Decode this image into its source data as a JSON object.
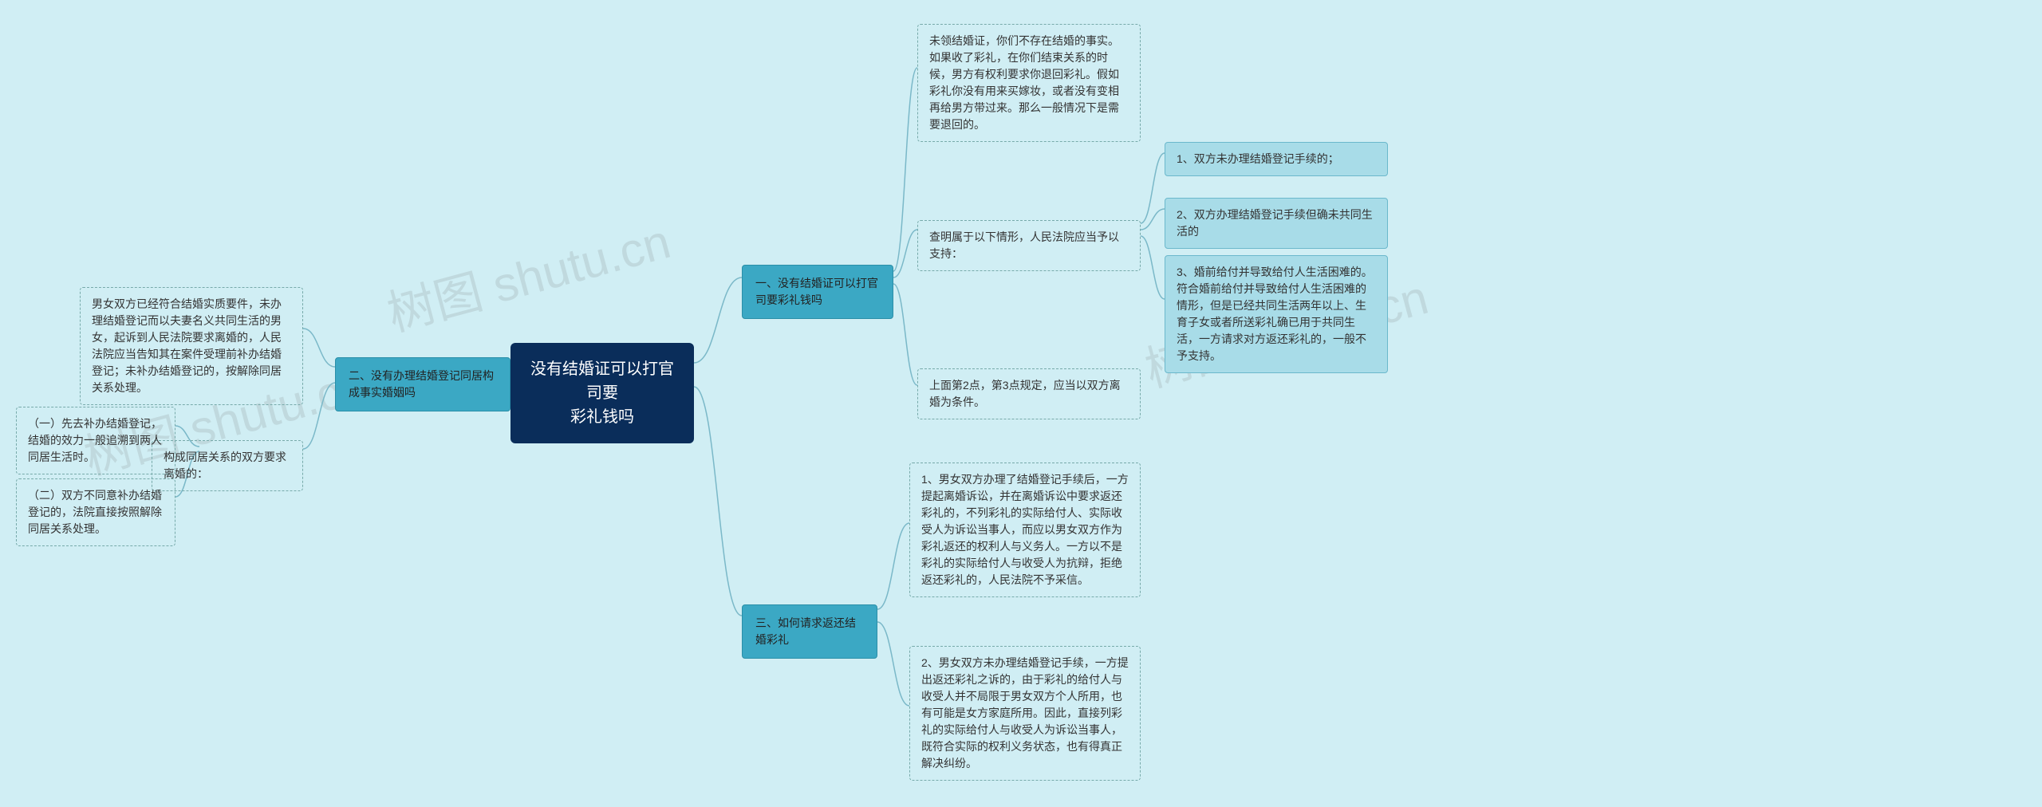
{
  "background_color": "#d0eef4",
  "watermark_text": "树图 shutu.cn",
  "root": {
    "text_line1": "没有结婚证可以打官司要",
    "text_line2": "彩礼钱吗",
    "bg": "#0a2d5a",
    "color": "#ffffff",
    "fontsize": 20
  },
  "branch_style": {
    "bg": "#3ba8c4",
    "border": "#2a8fa8",
    "fontsize": 14
  },
  "leaf_solid_style": {
    "bg": "#a8dce8",
    "border": "#6bb8cc",
    "fontsize": 14
  },
  "leaf_dashed_style": {
    "border": "#77aaaa",
    "fontsize": 14
  },
  "connector_color": "#7ab8c8",
  "left": {
    "branch2": "二、没有办理结婚登记同居构成事实婚姻吗",
    "b2_c1": "男女双方已经符合结婚实质要件，未办理结婚登记而以夫妻名义共同生活的男女，起诉到人民法院要求离婚的，人民法院应当告知其在案件受理前补办结婚登记；未补办结婚登记的，按解除同居关系处理。",
    "b2_c2": "构成同居关系的双方要求离婚的：",
    "b2_c2_1": "（一）先去补办结婚登记，结婚的效力一般追溯到两人同居生活时。",
    "b2_c2_2": "（二）双方不同意补办结婚登记的，法院直接按照解除同居关系处理。"
  },
  "right": {
    "branch1": "一、没有结婚证可以打官司要彩礼钱吗",
    "b1_c1": "未领结婚证，你们不存在结婚的事实。如果收了彩礼，在你们结束关系的时候，男方有权利要求你退回彩礼。假如彩礼你没有用来买嫁妆，或者没有变相再给男方带过来。那么一般情况下是需要退回的。",
    "b1_c2": "查明属于以下情形，人民法院应当予以支持：",
    "b1_c2_1": "1、双方未办理结婚登记手续的；",
    "b1_c2_2": "2、双方办理结婚登记手续但确未共同生活的",
    "b1_c2_3": "3、婚前给付并导致给付人生活困难的。符合婚前给付并导致给付人生活困难的情形，但是已经共同生活两年以上、生育子女或者所送彩礼确已用于共同生活，一方请求对方返还彩礼的，一般不予支持。",
    "b1_c3": "上面第2点，第3点规定，应当以双方离婚为条件。",
    "branch3": "三、如何请求返还结婚彩礼",
    "b3_c1": "1、男女双方办理了结婚登记手续后，一方提起离婚诉讼，并在离婚诉讼中要求返还彩礼的，不列彩礼的实际给付人、实际收受人为诉讼当事人，而应以男女双方作为彩礼返还的权利人与义务人。一方以不是彩礼的实际给付人与收受人为抗辩，拒绝返还彩礼的，人民法院不予采信。",
    "b3_c2": "2、男女双方未办理结婚登记手续，一方提出返还彩礼之诉的，由于彩礼的给付人与收受人并不局限于男女双方个人所用，也有可能是女方家庭所用。因此，直接列彩礼的实际给付人与收受人为诉讼当事人，既符合实际的权利义务状态，也有得真正解决纠纷。"
  }
}
